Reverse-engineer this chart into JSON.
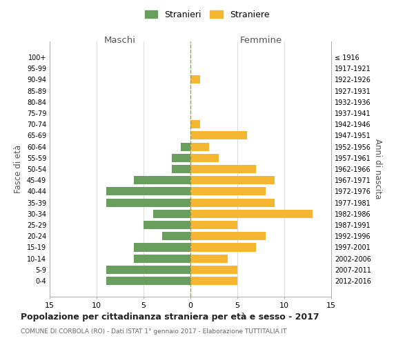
{
  "age_groups": [
    "0-4",
    "5-9",
    "10-14",
    "15-19",
    "20-24",
    "25-29",
    "30-34",
    "35-39",
    "40-44",
    "45-49",
    "50-54",
    "55-59",
    "60-64",
    "65-69",
    "70-74",
    "75-79",
    "80-84",
    "85-89",
    "90-94",
    "95-99",
    "100+"
  ],
  "birth_years": [
    "2012-2016",
    "2007-2011",
    "2002-2006",
    "1997-2001",
    "1992-1996",
    "1987-1991",
    "1982-1986",
    "1977-1981",
    "1972-1976",
    "1967-1971",
    "1962-1966",
    "1957-1961",
    "1952-1956",
    "1947-1951",
    "1942-1946",
    "1937-1941",
    "1932-1936",
    "1927-1931",
    "1922-1926",
    "1917-1921",
    "≤ 1916"
  ],
  "males": [
    9,
    9,
    6,
    6,
    3,
    5,
    4,
    9,
    9,
    6,
    2,
    2,
    1,
    0,
    0,
    0,
    0,
    0,
    0,
    0,
    0
  ],
  "females": [
    5,
    5,
    4,
    7,
    8,
    5,
    13,
    9,
    8,
    9,
    7,
    3,
    2,
    6,
    1,
    0,
    0,
    0,
    1,
    0,
    0
  ],
  "male_color": "#6a9e5f",
  "female_color": "#f5b731",
  "background_color": "#ffffff",
  "grid_color": "#cccccc",
  "axis_line_color": "#aaaaaa",
  "title": "Popolazione per cittadinanza straniera per età e sesso - 2017",
  "subtitle": "COMUNE DI CORBOLA (RO) - Dati ISTAT 1° gennaio 2017 - Elaborazione TUTTITALIA.IT",
  "left_label": "Maschi",
  "right_label": "Femmine",
  "ylabel": "Fasce di età",
  "right_ylabel": "Anni di nascita",
  "legend_males": "Stranieri",
  "legend_females": "Straniere",
  "xlim": 15,
  "bar_height": 0.75,
  "center_line_color": "#999966",
  "center_line_style": "--"
}
